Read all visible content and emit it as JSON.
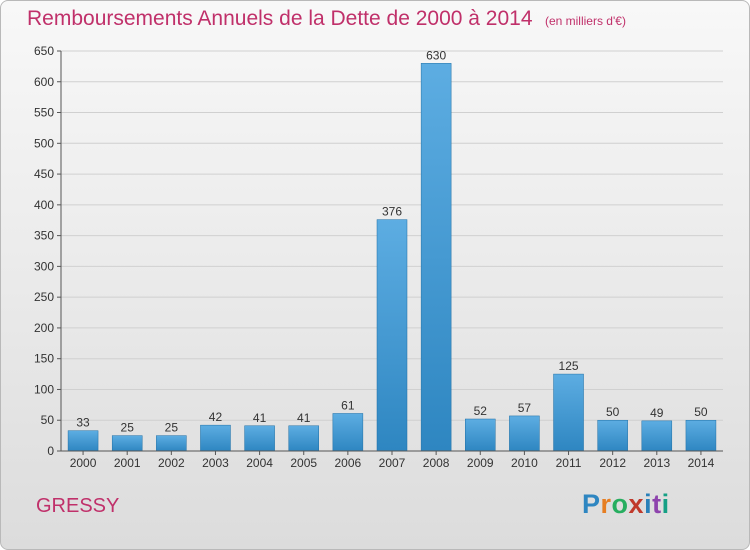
{
  "title": "Remboursements Annuels de la Dette de 2000 à 2014",
  "unit_note": "(en milliers d'€)",
  "commune_name": "GRESSY",
  "logo": {
    "text": "Proxiti",
    "letter_colors": [
      "#2e86c1",
      "#e67e22",
      "#27ae60",
      "#c0392b",
      "#2980b9",
      "#8e44ad",
      "#16a085"
    ]
  },
  "colors": {
    "title": "#c0306a",
    "bar_light": "#5dade2",
    "bar_dark": "#2e86c1",
    "grid": "#d0d0d0"
  },
  "chart_data": {
    "type": "bar",
    "title": "Remboursements Annuels de la Dette de 2000 à 2014",
    "xlabel": "",
    "ylabel": "",
    "categories": [
      "2000",
      "2001",
      "2002",
      "2003",
      "2004",
      "2005",
      "2006",
      "2007",
      "2008",
      "2009",
      "2010",
      "2011",
      "2012",
      "2013",
      "2014"
    ],
    "values": [
      33,
      25,
      25,
      42,
      41,
      41,
      61,
      376,
      630,
      52,
      57,
      125,
      50,
      49,
      50
    ],
    "ylim": [
      0,
      650
    ],
    "yticks": [
      0,
      50,
      100,
      150,
      200,
      250,
      300,
      350,
      400,
      450,
      500,
      550,
      600,
      650
    ],
    "grid": true,
    "data_labels": true
  }
}
